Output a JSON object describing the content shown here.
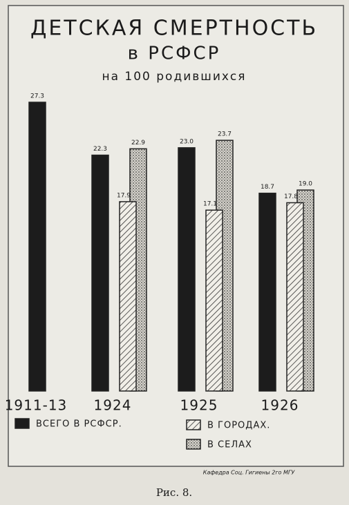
{
  "chart_data": {
    "type": "bar",
    "title": "ДЕТСКАЯ СМЕРТНОСТЬ",
    "subtitle": "в РСФСР",
    "subtitle2": "на 100 родившихся",
    "categories": [
      "1911-13",
      "1924",
      "1925",
      "1926"
    ],
    "series": [
      {
        "name": "ВСЕГО В РСФСР.",
        "color": "#1c1c1c",
        "pattern": "solid",
        "values": [
          27.3,
          22.3,
          23.0,
          18.7
        ],
        "value_labels": [
          "27.3",
          "22.3",
          "23.0",
          "18.7"
        ]
      },
      {
        "name": "В ГОРОДАХ.",
        "color": "#f1efe8",
        "pattern": "hatch",
        "values": [
          null,
          17.9,
          17.1,
          17.8
        ],
        "value_labels": [
          null,
          "17.9",
          "17.1",
          "17.8"
        ]
      },
      {
        "name": "В СЕЛАХ",
        "color": "#b9b6ae",
        "pattern": "dots",
        "values": [
          null,
          22.9,
          23.7,
          19.0
        ],
        "value_labels": [
          null,
          "22.9",
          "23.7",
          "19.0"
        ]
      }
    ],
    "source": "Кафедра Соц. Гигиены 2го МГУ",
    "caption": "Рис. 8."
  }
}
